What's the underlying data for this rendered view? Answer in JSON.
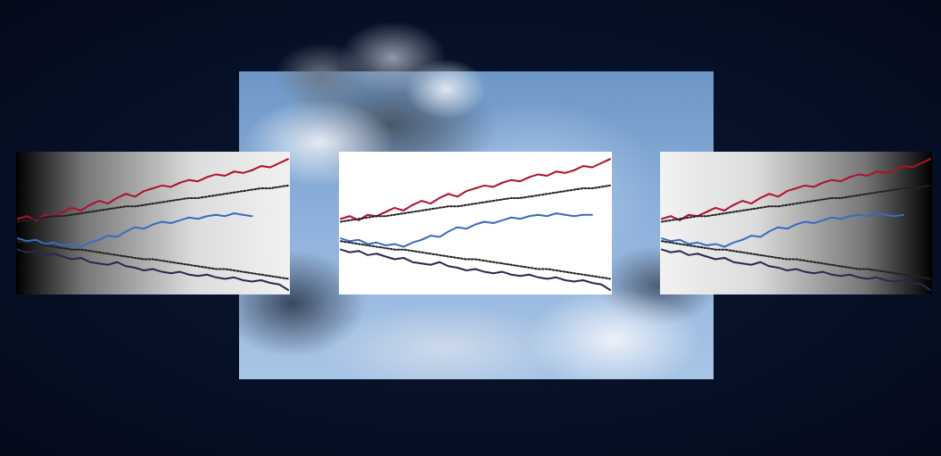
{
  "chart_data": [
    {
      "type": "line",
      "tick_labels": false,
      "grid": false,
      "x": [
        0,
        1,
        2,
        3,
        4,
        5,
        6,
        7,
        8,
        9,
        10,
        11,
        12,
        13,
        14,
        15,
        16,
        17,
        18,
        19,
        20,
        21,
        22,
        23,
        24,
        25,
        26,
        27,
        28,
        29,
        30
      ],
      "xlim": [
        0,
        30
      ],
      "ylim": [
        0,
        100
      ],
      "series": [
        {
          "color": "#b01030",
          "line_style": "solid",
          "values": [
            53,
            55,
            52,
            56,
            55,
            58,
            61,
            59,
            63,
            66,
            64,
            68,
            71,
            69,
            73,
            75,
            77,
            76,
            79,
            81,
            80,
            83,
            85,
            84,
            87,
            86,
            88,
            91,
            90,
            93,
            96
          ]
        },
        {
          "color": "#3a6bc0",
          "line_style": "solid",
          "values": [
            39,
            37,
            38,
            35,
            36,
            34,
            35,
            33,
            36,
            38,
            41,
            40,
            44,
            47,
            46,
            49,
            51,
            50,
            52,
            54,
            53,
            55,
            56,
            55,
            57,
            56,
            55,
            null,
            null,
            null,
            null
          ]
        },
        {
          "color": "#2a2850",
          "line_style": "solid",
          "values": [
            31,
            29,
            30,
            27,
            28,
            26,
            24,
            25,
            22,
            21,
            20,
            22,
            19,
            18,
            16,
            17,
            15,
            14,
            15,
            13,
            12,
            13,
            11,
            10,
            11,
            9,
            8,
            9,
            7,
            6,
            2
          ]
        },
        {
          "color": "#222222",
          "line_style": "dotted",
          "values": [
            51,
            52,
            53,
            54,
            55,
            55,
            56,
            57,
            58,
            59,
            60,
            61,
            62,
            62,
            63,
            64,
            65,
            66,
            67,
            68,
            68,
            69,
            70,
            71,
            72,
            73,
            74,
            75,
            75,
            76,
            77
          ]
        },
        {
          "color": "#222222",
          "line_style": "dotted",
          "values": [
            37,
            36,
            35,
            34,
            33,
            32,
            31,
            31,
            30,
            29,
            28,
            27,
            26,
            25,
            24,
            24,
            23,
            22,
            21,
            20,
            19,
            18,
            17,
            17,
            16,
            15,
            14,
            13,
            12,
            11,
            10
          ]
        }
      ]
    },
    {
      "type": "line",
      "tick_labels": false,
      "grid": false,
      "x": [
        0,
        1,
        2,
        3,
        4,
        5,
        6,
        7,
        8,
        9,
        10,
        11,
        12,
        13,
        14,
        15,
        16,
        17,
        18,
        19,
        20,
        21,
        22,
        23,
        24,
        25,
        26,
        27,
        28,
        29,
        30
      ],
      "xlim": [
        0,
        30
      ],
      "ylim": [
        0,
        100
      ],
      "series": [
        {
          "color": "#b01030",
          "line_style": "solid",
          "values": [
            53,
            55,
            52,
            56,
            55,
            58,
            61,
            59,
            63,
            66,
            64,
            68,
            71,
            69,
            73,
            75,
            77,
            76,
            79,
            81,
            80,
            83,
            85,
            84,
            87,
            86,
            88,
            91,
            90,
            93,
            96
          ]
        },
        {
          "color": "#3a6bc0",
          "line_style": "solid",
          "values": [
            39,
            37,
            38,
            35,
            36,
            34,
            35,
            33,
            36,
            38,
            41,
            40,
            44,
            47,
            46,
            49,
            51,
            50,
            52,
            54,
            53,
            55,
            56,
            55,
            57,
            56,
            55,
            56,
            56,
            null,
            null
          ]
        },
        {
          "color": "#2a2850",
          "line_style": "solid",
          "values": [
            31,
            29,
            30,
            27,
            28,
            26,
            24,
            25,
            22,
            21,
            20,
            22,
            19,
            18,
            16,
            17,
            15,
            14,
            15,
            13,
            12,
            13,
            11,
            10,
            11,
            9,
            8,
            9,
            7,
            6,
            2
          ]
        },
        {
          "color": "#222222",
          "line_style": "dotted",
          "values": [
            51,
            52,
            53,
            54,
            55,
            55,
            56,
            57,
            58,
            59,
            60,
            61,
            62,
            62,
            63,
            64,
            65,
            66,
            67,
            68,
            68,
            69,
            70,
            71,
            72,
            73,
            74,
            75,
            75,
            76,
            77
          ]
        },
        {
          "color": "#222222",
          "line_style": "dotted",
          "values": [
            37,
            36,
            35,
            34,
            33,
            32,
            31,
            31,
            30,
            29,
            28,
            27,
            26,
            25,
            24,
            24,
            23,
            22,
            21,
            20,
            19,
            18,
            17,
            17,
            16,
            15,
            14,
            13,
            12,
            11,
            10
          ]
        }
      ]
    },
    {
      "type": "line",
      "tick_labels": false,
      "grid": false,
      "x": [
        0,
        1,
        2,
        3,
        4,
        5,
        6,
        7,
        8,
        9,
        10,
        11,
        12,
        13,
        14,
        15,
        16,
        17,
        18,
        19,
        20,
        21,
        22,
        23,
        24,
        25,
        26,
        27,
        28,
        29,
        30
      ],
      "xlim": [
        0,
        30
      ],
      "ylim": [
        0,
        100
      ],
      "series": [
        {
          "color": "#b01030",
          "line_style": "solid",
          "values": [
            53,
            55,
            52,
            56,
            55,
            58,
            61,
            59,
            63,
            66,
            64,
            68,
            71,
            69,
            73,
            75,
            77,
            76,
            79,
            81,
            80,
            83,
            85,
            84,
            87,
            86,
            88,
            91,
            90,
            93,
            96
          ]
        },
        {
          "color": "#3a6bc0",
          "line_style": "solid",
          "values": [
            39,
            37,
            38,
            35,
            36,
            34,
            35,
            33,
            36,
            38,
            41,
            40,
            44,
            47,
            46,
            49,
            51,
            50,
            52,
            54,
            53,
            55,
            56,
            55,
            57,
            56,
            55,
            56,
            null,
            null,
            null
          ]
        },
        {
          "color": "#2a2850",
          "line_style": "solid",
          "values": [
            31,
            29,
            30,
            27,
            28,
            26,
            24,
            25,
            22,
            21,
            20,
            22,
            19,
            18,
            16,
            17,
            15,
            14,
            15,
            13,
            12,
            13,
            11,
            10,
            11,
            9,
            8,
            9,
            7,
            6,
            2
          ]
        },
        {
          "color": "#222222",
          "line_style": "dotted",
          "values": [
            51,
            52,
            53,
            54,
            55,
            55,
            56,
            57,
            58,
            59,
            60,
            61,
            62,
            62,
            63,
            64,
            65,
            66,
            67,
            68,
            68,
            69,
            70,
            71,
            72,
            73,
            74,
            75,
            75,
            76,
            77
          ]
        },
        {
          "color": "#222222",
          "line_style": "dotted",
          "values": [
            37,
            36,
            35,
            34,
            33,
            32,
            31,
            31,
            30,
            29,
            28,
            27,
            26,
            25,
            24,
            24,
            23,
            22,
            21,
            20,
            19,
            18,
            17,
            17,
            16,
            15,
            14,
            13,
            12,
            11,
            10
          ]
        }
      ]
    }
  ]
}
